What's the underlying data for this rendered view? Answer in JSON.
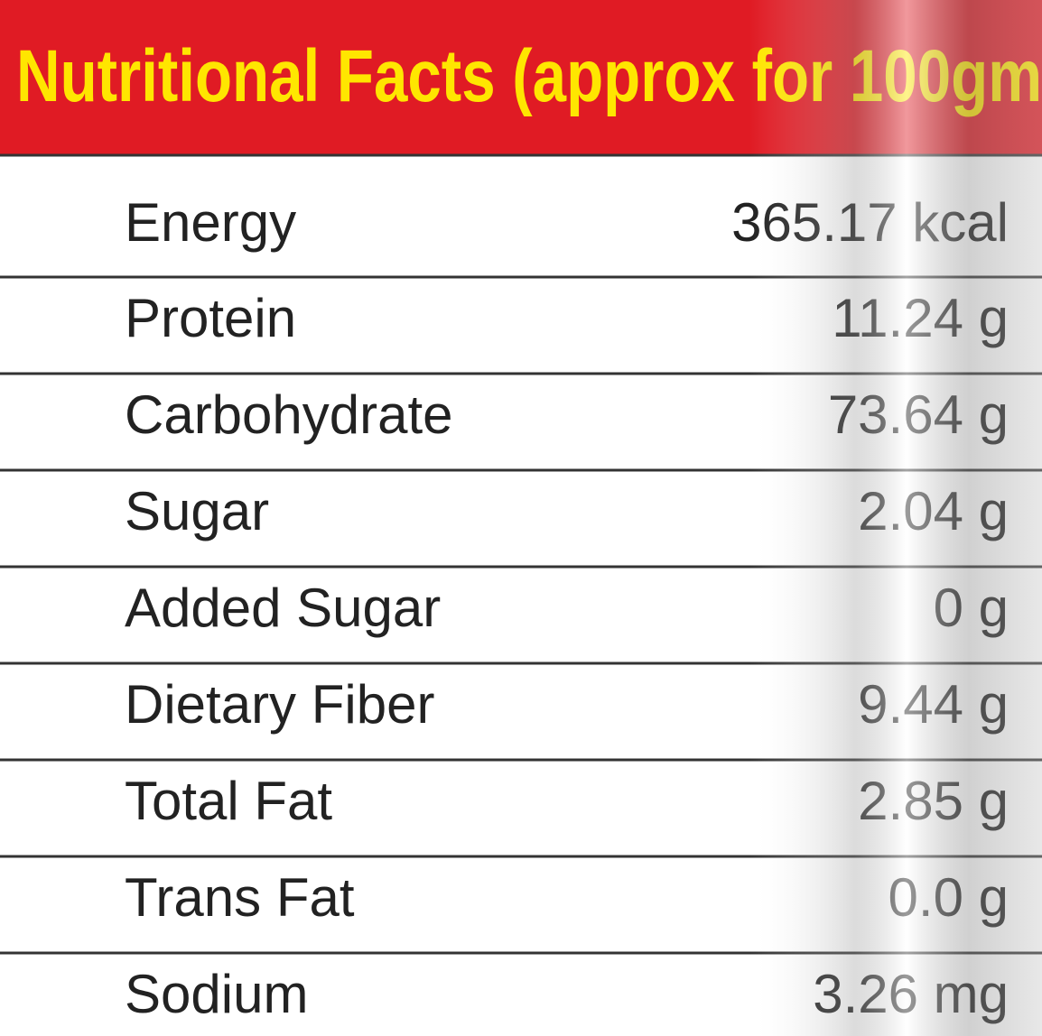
{
  "header": {
    "title": "Nutritional Facts (approx for 100gm"
  },
  "table": {
    "rows": [
      [
        "Energy",
        "365.17 kcal"
      ],
      [
        "Protein",
        "11.24 g"
      ],
      [
        "Carbohydrate",
        "73.64 g"
      ],
      [
        "Sugar",
        "2.04 g"
      ],
      [
        "Added Sugar",
        "0 g"
      ],
      [
        "Dietary Fiber",
        "9.44 g"
      ],
      [
        "Total Fat",
        "2.85 g"
      ],
      [
        "Trans Fat",
        "0.0 g"
      ],
      [
        "Sodium",
        "3.26 mg"
      ]
    ]
  }
}
